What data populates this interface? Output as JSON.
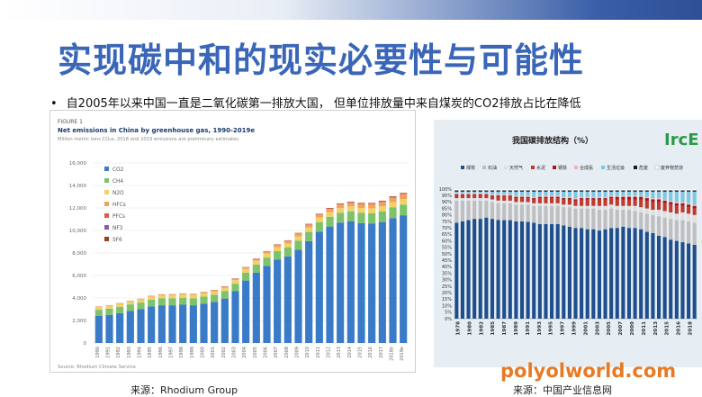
{
  "slide": {
    "title": "实现碳中和的现实必要性与可能性",
    "bullet_symbol": "•",
    "bullet_text": "自2005年以来中国一直是二氧化碳第一排放大国， 但单位排放量中来自煤炭的CO2排放占比在降低",
    "source_left": "来源：Rhodium Group",
    "source_right": "来源：中国产业信息网",
    "watermark": "polyolworld.com",
    "logo_text": "IrcE"
  },
  "colors": {
    "title": "#3a66b8",
    "co2": "#3a7bc8",
    "ch4": "#7cc36b",
    "n2o": "#f2d16b",
    "hfcs": "#f0a35a",
    "pfcs": "#e05a4a",
    "nf3": "#8a5bb5",
    "sf6": "#9b3b2b",
    "coal": "#1f4e8c",
    "oil": "#bfbfbf",
    "gas": "#e0e0e0",
    "cement": "#c0392b",
    "steel": "#a01818",
    "ammonia": "#f0b3b3",
    "life": "#7ec8e3",
    "waste": "#1a1a1a"
  },
  "chart_data": [
    {
      "type": "bar",
      "stacked": true,
      "figure_label": "FIGURE 1",
      "title": "Net emissions in China by greenhouse gas, 1990-2019e",
      "subtitle": "Million metric tons CO₂e, 2018 and 2019 emissions are preliminary estimates",
      "source": "Source: Rhodium Climate Service",
      "ylim": [
        0,
        16000
      ],
      "yticks": [
        "16,000",
        "14,000",
        "12,000",
        "10,000",
        "8,000",
        "6,000",
        "4,000",
        "2,000",
        "0"
      ],
      "ytick_values": [
        16000,
        14000,
        12000,
        10000,
        8000,
        6000,
        4000,
        2000,
        0
      ],
      "legend_placement": "top-left",
      "categories": [
        "1990",
        "1991",
        "1992",
        "1993",
        "1994",
        "1995",
        "1996",
        "1997",
        "1998",
        "1999",
        "2000",
        "2001",
        "2002",
        "2003",
        "2004",
        "2005",
        "2006",
        "2007",
        "2008",
        "2009",
        "2010",
        "2011",
        "2012",
        "2013",
        "2014",
        "2015",
        "2016",
        "2017",
        "2018e",
        "2019e"
      ],
      "series": [
        {
          "name": "CO2",
          "color": "#3a7bc8",
          "values": [
            2400,
            2500,
            2650,
            2850,
            3000,
            3250,
            3350,
            3350,
            3400,
            3350,
            3500,
            3650,
            3950,
            4600,
            5550,
            6250,
            6850,
            7400,
            7700,
            8300,
            9050,
            9900,
            10350,
            10700,
            10800,
            10650,
            10600,
            10750,
            11100,
            11350
          ]
        },
        {
          "name": "CH4",
          "color": "#7cc36b",
          "values": [
            550,
            560,
            570,
            580,
            590,
            600,
            610,
            615,
            620,
            625,
            630,
            640,
            650,
            670,
            700,
            720,
            740,
            760,
            780,
            800,
            820,
            840,
            860,
            880,
            900,
            910,
            920,
            930,
            940,
            950
          ]
        },
        {
          "name": "N2O",
          "color": "#f2d16b",
          "values": [
            250,
            255,
            260,
            265,
            270,
            275,
            280,
            285,
            290,
            295,
            300,
            305,
            310,
            320,
            330,
            340,
            350,
            360,
            370,
            380,
            390,
            400,
            410,
            420,
            430,
            440,
            450,
            460,
            470,
            480
          ]
        },
        {
          "name": "HFCs",
          "color": "#f0a35a",
          "values": [
            30,
            35,
            40,
            45,
            50,
            55,
            60,
            65,
            70,
            75,
            80,
            90,
            100,
            110,
            130,
            150,
            170,
            190,
            210,
            230,
            250,
            270,
            290,
            310,
            330,
            350,
            370,
            390,
            410,
            430
          ]
        },
        {
          "name": "PFCs",
          "color": "#e05a4a",
          "values": [
            10,
            10,
            10,
            12,
            12,
            14,
            14,
            15,
            15,
            16,
            16,
            18,
            20,
            22,
            25,
            28,
            30,
            32,
            35,
            38,
            40,
            42,
            45,
            48,
            50,
            52,
            54,
            56,
            58,
            60
          ]
        },
        {
          "name": "NF3",
          "color": "#8a5bb5",
          "values": [
            0,
            0,
            0,
            0,
            0,
            0,
            0,
            0,
            0,
            0,
            0,
            1,
            1,
            2,
            2,
            3,
            4,
            5,
            6,
            7,
            8,
            9,
            10,
            11,
            12,
            13,
            14,
            15,
            16,
            17
          ]
        },
        {
          "name": "SF6",
          "color": "#9b3b2b",
          "values": [
            5,
            5,
            6,
            6,
            7,
            7,
            8,
            8,
            9,
            9,
            10,
            11,
            12,
            14,
            16,
            18,
            20,
            22,
            24,
            26,
            28,
            30,
            32,
            34,
            36,
            38,
            40,
            42,
            44,
            46
          ]
        }
      ]
    },
    {
      "type": "bar",
      "stacked": true,
      "title": "我国碳排放结构（%）",
      "ylim": [
        0,
        100
      ],
      "yticks": [
        "100%",
        "95%",
        "90%",
        "85%",
        "80%",
        "75%",
        "70%",
        "65%",
        "60%",
        "55%",
        "50%",
        "45%",
        "40%",
        "35%",
        "30%",
        "25%",
        "20%",
        "15%",
        "10%",
        "5%",
        "0%"
      ],
      "ytick_values": [
        100,
        95,
        90,
        85,
        80,
        75,
        70,
        65,
        60,
        55,
        50,
        45,
        40,
        35,
        30,
        25,
        20,
        15,
        10,
        5,
        0
      ],
      "legend_placement": "top",
      "categories": [
        "1978",
        "1979",
        "1980",
        "1981",
        "1982",
        "1983",
        "1984",
        "1985",
        "1986",
        "1987",
        "1988",
        "1989",
        "1990",
        "1991",
        "1992",
        "1993",
        "1994",
        "1995",
        "1996",
        "1997",
        "1998",
        "1999",
        "2000",
        "2001",
        "2002",
        "2003",
        "2004",
        "2005",
        "2006",
        "2007",
        "2008",
        "2009",
        "2010",
        "2011",
        "2012",
        "2013",
        "2014",
        "2015",
        "2016",
        "2017",
        "2018"
      ],
      "tick_labels": [
        "1978",
        "1980",
        "1982",
        "1985",
        "1987",
        "1989",
        "1991",
        "1993",
        "1995",
        "1997",
        "1999",
        "2001",
        "2003",
        "2005",
        "2007",
        "2009",
        "2011",
        "2013",
        "2015",
        "2016",
        "2018"
      ],
      "series": [
        {
          "name": "煤炭",
          "color": "#1f4e8c",
          "values": [
            74,
            75,
            76,
            77,
            77,
            78,
            77,
            77,
            76,
            76,
            75,
            75,
            74,
            74,
            73,
            73,
            73,
            73,
            72,
            71,
            70,
            70,
            69,
            69,
            68,
            69,
            70,
            70,
            71,
            70,
            70,
            69,
            67,
            66,
            64,
            63,
            61,
            60,
            59,
            58,
            57
          ]
        },
        {
          "name": "石油",
          "color": "#bfbfbf",
          "values": [
            17,
            16,
            15,
            14,
            14,
            13,
            13,
            13,
            13,
            13,
            13,
            13,
            13,
            13,
            14,
            14,
            14,
            14,
            14,
            15,
            15,
            15,
            16,
            16,
            16,
            15,
            15,
            14,
            13,
            14,
            13,
            13,
            14,
            14,
            15,
            15,
            16,
            16,
            17,
            17,
            17
          ]
        },
        {
          "name": "天然气",
          "color": "#e0e0e0",
          "values": [
            2,
            2,
            2,
            2,
            2,
            2,
            2,
            2,
            2,
            2,
            2,
            2,
            2,
            2,
            2,
            2,
            2,
            2,
            2,
            2,
            2,
            2,
            2,
            2,
            3,
            3,
            3,
            3,
            3,
            3,
            4,
            4,
            4,
            4,
            5,
            5,
            5,
            5,
            6,
            6,
            6
          ]
        },
        {
          "name": "水泥",
          "color": "#c0392b",
          "values": [
            2,
            2,
            2,
            2,
            2,
            2,
            2,
            3,
            3,
            3,
            3,
            3,
            3,
            3,
            4,
            4,
            4,
            4,
            4,
            4,
            4,
            5,
            5,
            5,
            5,
            5,
            5,
            5,
            5,
            5,
            5,
            6,
            6,
            6,
            6,
            6,
            6,
            6,
            5,
            5,
            5
          ]
        },
        {
          "name": "钢铁",
          "color": "#a01818",
          "values": [
            1,
            1,
            1,
            1,
            1,
            1,
            1,
            1,
            1,
            1,
            1,
            1,
            1,
            1,
            1,
            1,
            1,
            1,
            1,
            1,
            1,
            1,
            1,
            1,
            1,
            1,
            1,
            2,
            2,
            2,
            2,
            2,
            2,
            2,
            2,
            2,
            2,
            2,
            2,
            2,
            2
          ]
        },
        {
          "name": "合成氨",
          "color": "#f0b3b3",
          "values": [
            1,
            1,
            1,
            1,
            1,
            1,
            1,
            1,
            1,
            1,
            1,
            1,
            1,
            1,
            1,
            1,
            1,
            1,
            1,
            1,
            1,
            1,
            1,
            1,
            1,
            1,
            1,
            1,
            1,
            1,
            1,
            1,
            1,
            1,
            1,
            1,
            1,
            1,
            1,
            1,
            1
          ]
        },
        {
          "name": "生活垃圾",
          "color": "#7ec8e3",
          "values": [
            1,
            1,
            1,
            1,
            1,
            1,
            2,
            2,
            2,
            2,
            3,
            3,
            3,
            4,
            3,
            3,
            3,
            3,
            4,
            4,
            5,
            4,
            4,
            4,
            4,
            4,
            3,
            3,
            3,
            3,
            3,
            3,
            4,
            5,
            5,
            6,
            7,
            8,
            8,
            9,
            10
          ]
        },
        {
          "name": "危废",
          "color": "#1a1a1a",
          "values": [
            1,
            1,
            1,
            1,
            1,
            1,
            1,
            1,
            1,
            1,
            1,
            1,
            1,
            1,
            1,
            1,
            1,
            1,
            1,
            1,
            1,
            1,
            1,
            1,
            1,
            1,
            1,
            1,
            1,
            1,
            1,
            1,
            1,
            1,
            1,
            1,
            1,
            1,
            1,
            1,
            1
          ]
        },
        {
          "name": "废弃物焚烧",
          "color": "#ffffff",
          "values": [
            1,
            1,
            1,
            1,
            1,
            1,
            1,
            1,
            1,
            1,
            1,
            1,
            1,
            1,
            1,
            1,
            1,
            1,
            1,
            1,
            1,
            1,
            1,
            1,
            1,
            1,
            1,
            1,
            1,
            1,
            1,
            1,
            1,
            1,
            1,
            1,
            1,
            1,
            1,
            1,
            1
          ]
        }
      ]
    }
  ]
}
